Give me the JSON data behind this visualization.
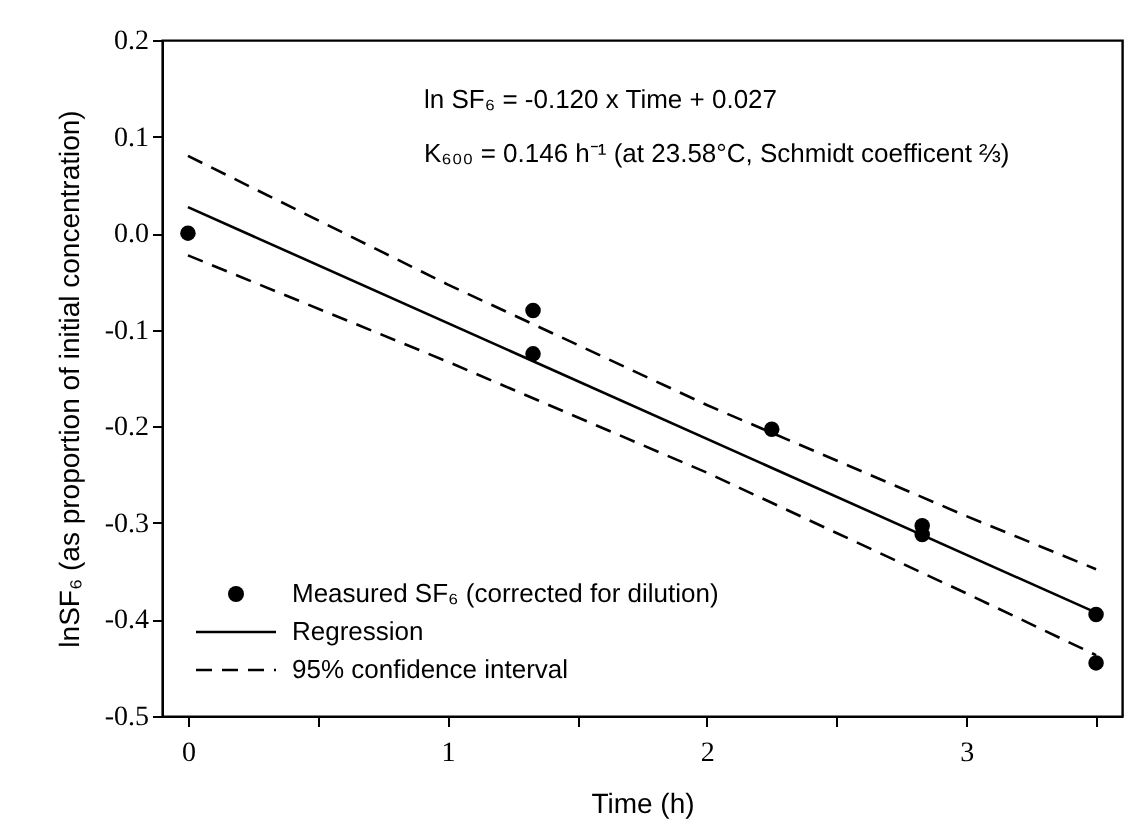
{
  "chart_data": {
    "type": "scatter",
    "xlabel": "Time (h)",
    "ylabel": "lnSF₆ (as proportion of initial concentration)",
    "annotations": [
      "ln SF₆ = -0.120 x Time + 0.027",
      "K₆₀₀ = 0.146 h⁻¹ (at 23.58°C, Schmidt coefficent ⅔)"
    ],
    "xlim": [
      -0.1,
      3.6
    ],
    "xticks": [
      0,
      {
        "value": 0.5,
        "label": null
      },
      1,
      {
        "value": 1.5,
        "label": null
      },
      2,
      {
        "value": 2.5,
        "label": null
      },
      3,
      {
        "value": 3.5,
        "label": null
      }
    ],
    "ylim": [
      -0.5,
      0.2
    ],
    "yticks": [
      -0.5,
      -0.4,
      -0.3,
      -0.2,
      -0.1,
      {
        "value": 0,
        "label": "0.0"
      },
      0.1,
      0.2
    ],
    "grid": false,
    "legend": "bottom left",
    "series": [
      {
        "name": "Measured SF₆ (corrected for dilution)",
        "marker": "circle",
        "color": "#000000",
        "x": [
          0,
          1.33,
          1.33,
          2.25,
          2.83,
          2.83,
          3.5,
          3.5
        ],
        "values": [
          0.0,
          -0.08,
          -0.125,
          -0.203,
          -0.303,
          -0.312,
          -0.395,
          -0.445
        ]
      },
      {
        "name": "Regression",
        "type": "line",
        "line_style": "solid",
        "color": "#000000",
        "x": [
          0,
          3.5
        ],
        "values": [
          0.027,
          -0.393
        ]
      },
      {
        "name": "95% confidence interval",
        "type": "line",
        "line_style": "dashed",
        "color": "#000000",
        "x": [
          0,
          1,
          2,
          3,
          3.5
        ],
        "values": [
          0.08,
          -0.053,
          -0.178,
          -0.293,
          -0.348
        ]
      },
      {
        "type": "line",
        "line_style": "dashed",
        "color": "#000000",
        "x": [
          0,
          1,
          2,
          3,
          3.5
        ],
        "values": [
          -0.023,
          -0.133,
          -0.248,
          -0.373,
          -0.437
        ]
      }
    ]
  }
}
